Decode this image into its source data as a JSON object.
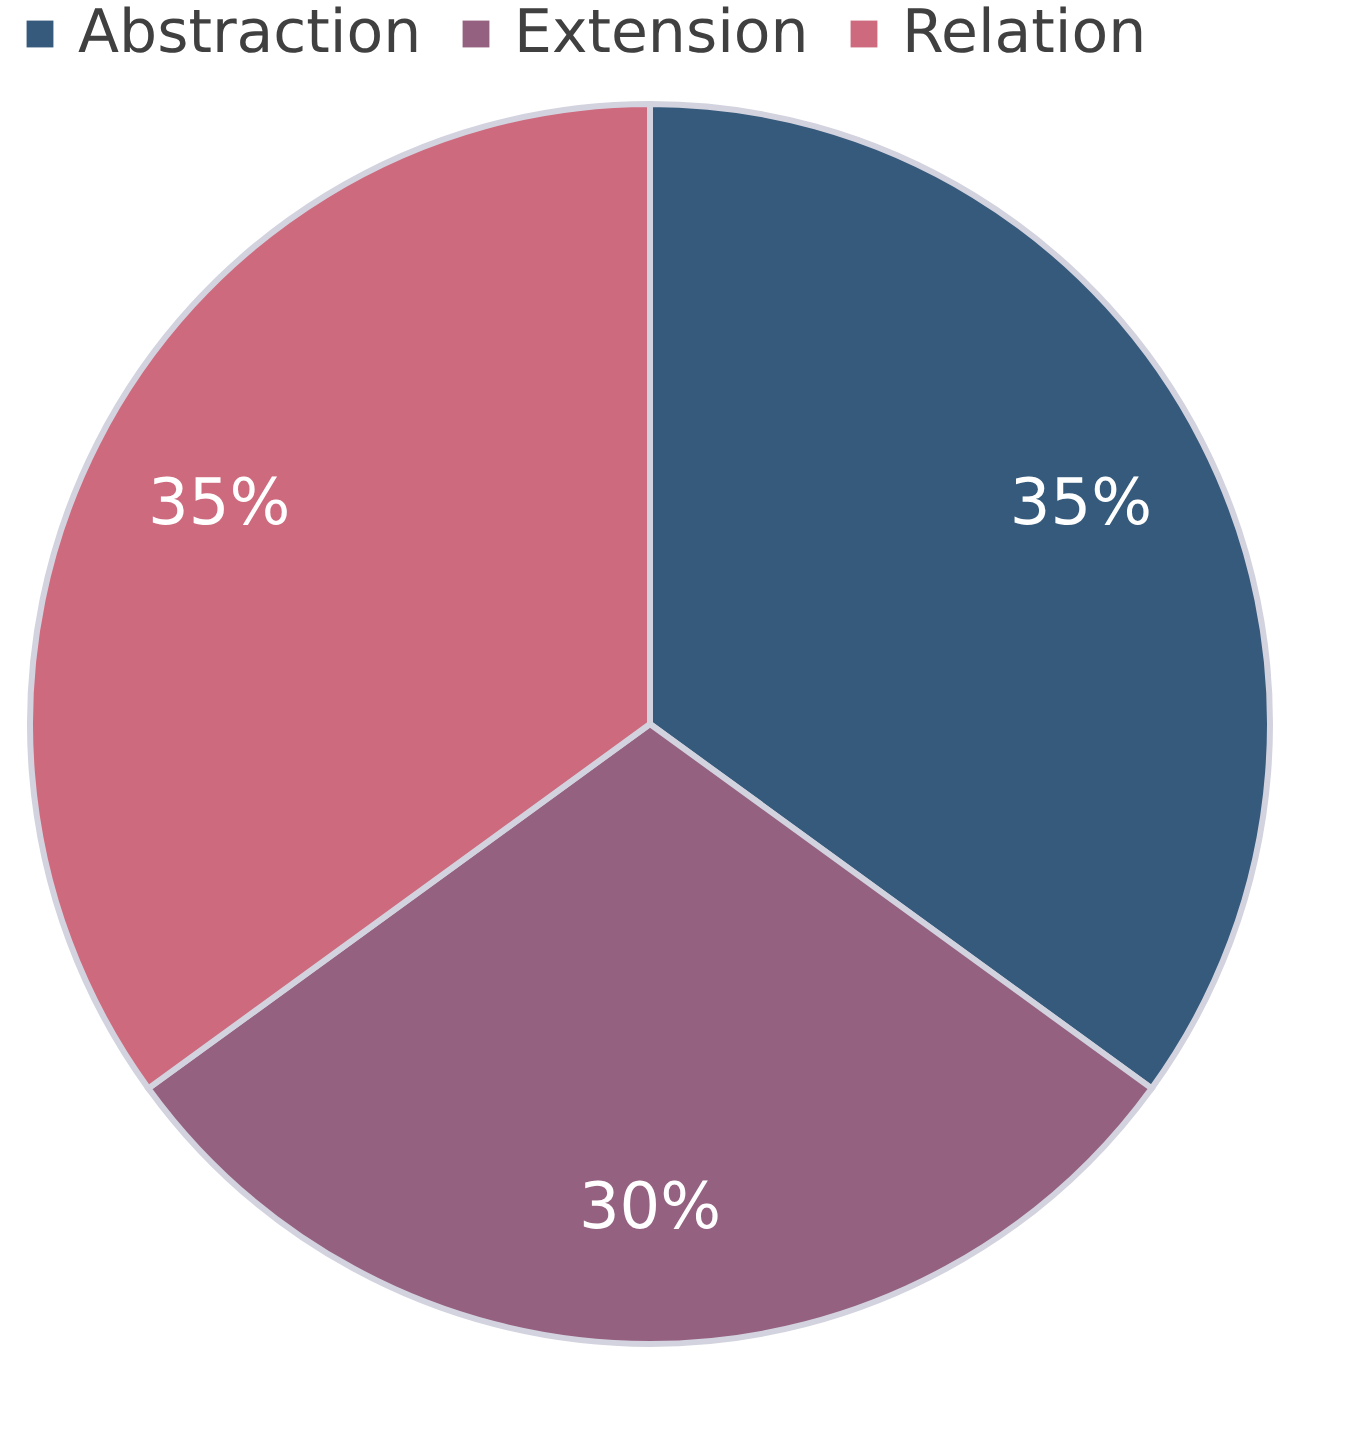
{
  "chart_data": {
    "type": "pie",
    "categories": [
      "Abstraction",
      "Extension",
      "Relation"
    ],
    "values": [
      35,
      30,
      35
    ],
    "colors": [
      "#355a7c",
      "#956181",
      "#cd6a7e"
    ],
    "value_labels": [
      "35%",
      "30%",
      "35%"
    ],
    "legend": "top"
  }
}
